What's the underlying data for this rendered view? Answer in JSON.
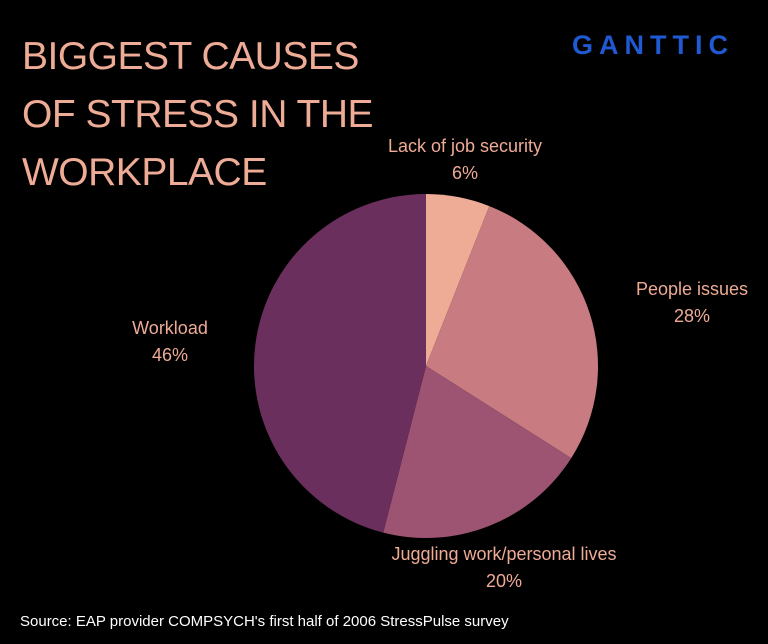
{
  "title": "BIGGEST CAUSES OF STRESS IN THE WORKPLACE",
  "logo": "GANTTIC",
  "source": "Source: EAP provider COMPSYCH's first half of 2006 StressPulse survey",
  "colors": {
    "background": "#000000",
    "title": "#eeab96",
    "label": "#eeab96",
    "logo": "#1f5ad2",
    "source": "#ffffff"
  },
  "chart_data": {
    "type": "pie",
    "title": "BIGGEST CAUSES OF STRESS IN THE WORKPLACE",
    "slices": [
      {
        "label": "Lack of job security",
        "value": 6,
        "value_label": "6%",
        "color": "#eeab96"
      },
      {
        "label": "People issues",
        "value": 28,
        "value_label": "28%",
        "color": "#c87c82"
      },
      {
        "label": "Juggling work/personal lives",
        "value": 20,
        "value_label": "20%",
        "color": "#9d5372"
      },
      {
        "label": "Workload",
        "value": 46,
        "value_label": "46%",
        "color": "#6a2f5d"
      }
    ],
    "start_angle": "12 o'clock",
    "direction": "clockwise",
    "legend": "none (labels placed beside slices)"
  }
}
